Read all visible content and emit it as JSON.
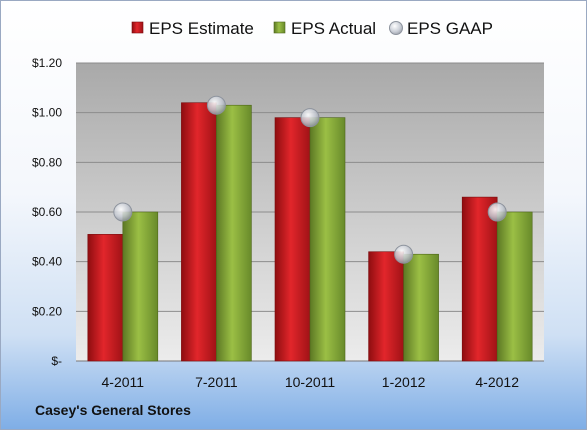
{
  "chart_data": {
    "type": "bar",
    "categories": [
      "4-2011",
      "7-2011",
      "10-2011",
      "1-2012",
      "4-2012"
    ],
    "series": [
      {
        "name": "EPS Estimate",
        "kind": "bar",
        "color": "#c0171c",
        "values": [
          0.51,
          1.04,
          0.98,
          0.44,
          0.66
        ]
      },
      {
        "name": "EPS Actual",
        "kind": "bar",
        "color": "#7a9a32",
        "values": [
          0.6,
          1.03,
          0.98,
          0.43,
          0.6
        ]
      },
      {
        "name": "EPS GAAP",
        "kind": "marker",
        "color": "#b8bec8",
        "values": [
          0.6,
          1.03,
          0.98,
          0.43,
          0.6
        ]
      }
    ],
    "ylim": [
      0,
      1.2
    ],
    "yticks": [
      0,
      0.2,
      0.4,
      0.6,
      0.8,
      1.0,
      1.2
    ],
    "ytick_labels": [
      "$-",
      "$0.20",
      "$0.40",
      "$0.60",
      "$0.80",
      "$1.00",
      "$1.20"
    ],
    "grid": true,
    "legend_position": "top"
  },
  "footer": {
    "company": "Casey's General Stores"
  }
}
